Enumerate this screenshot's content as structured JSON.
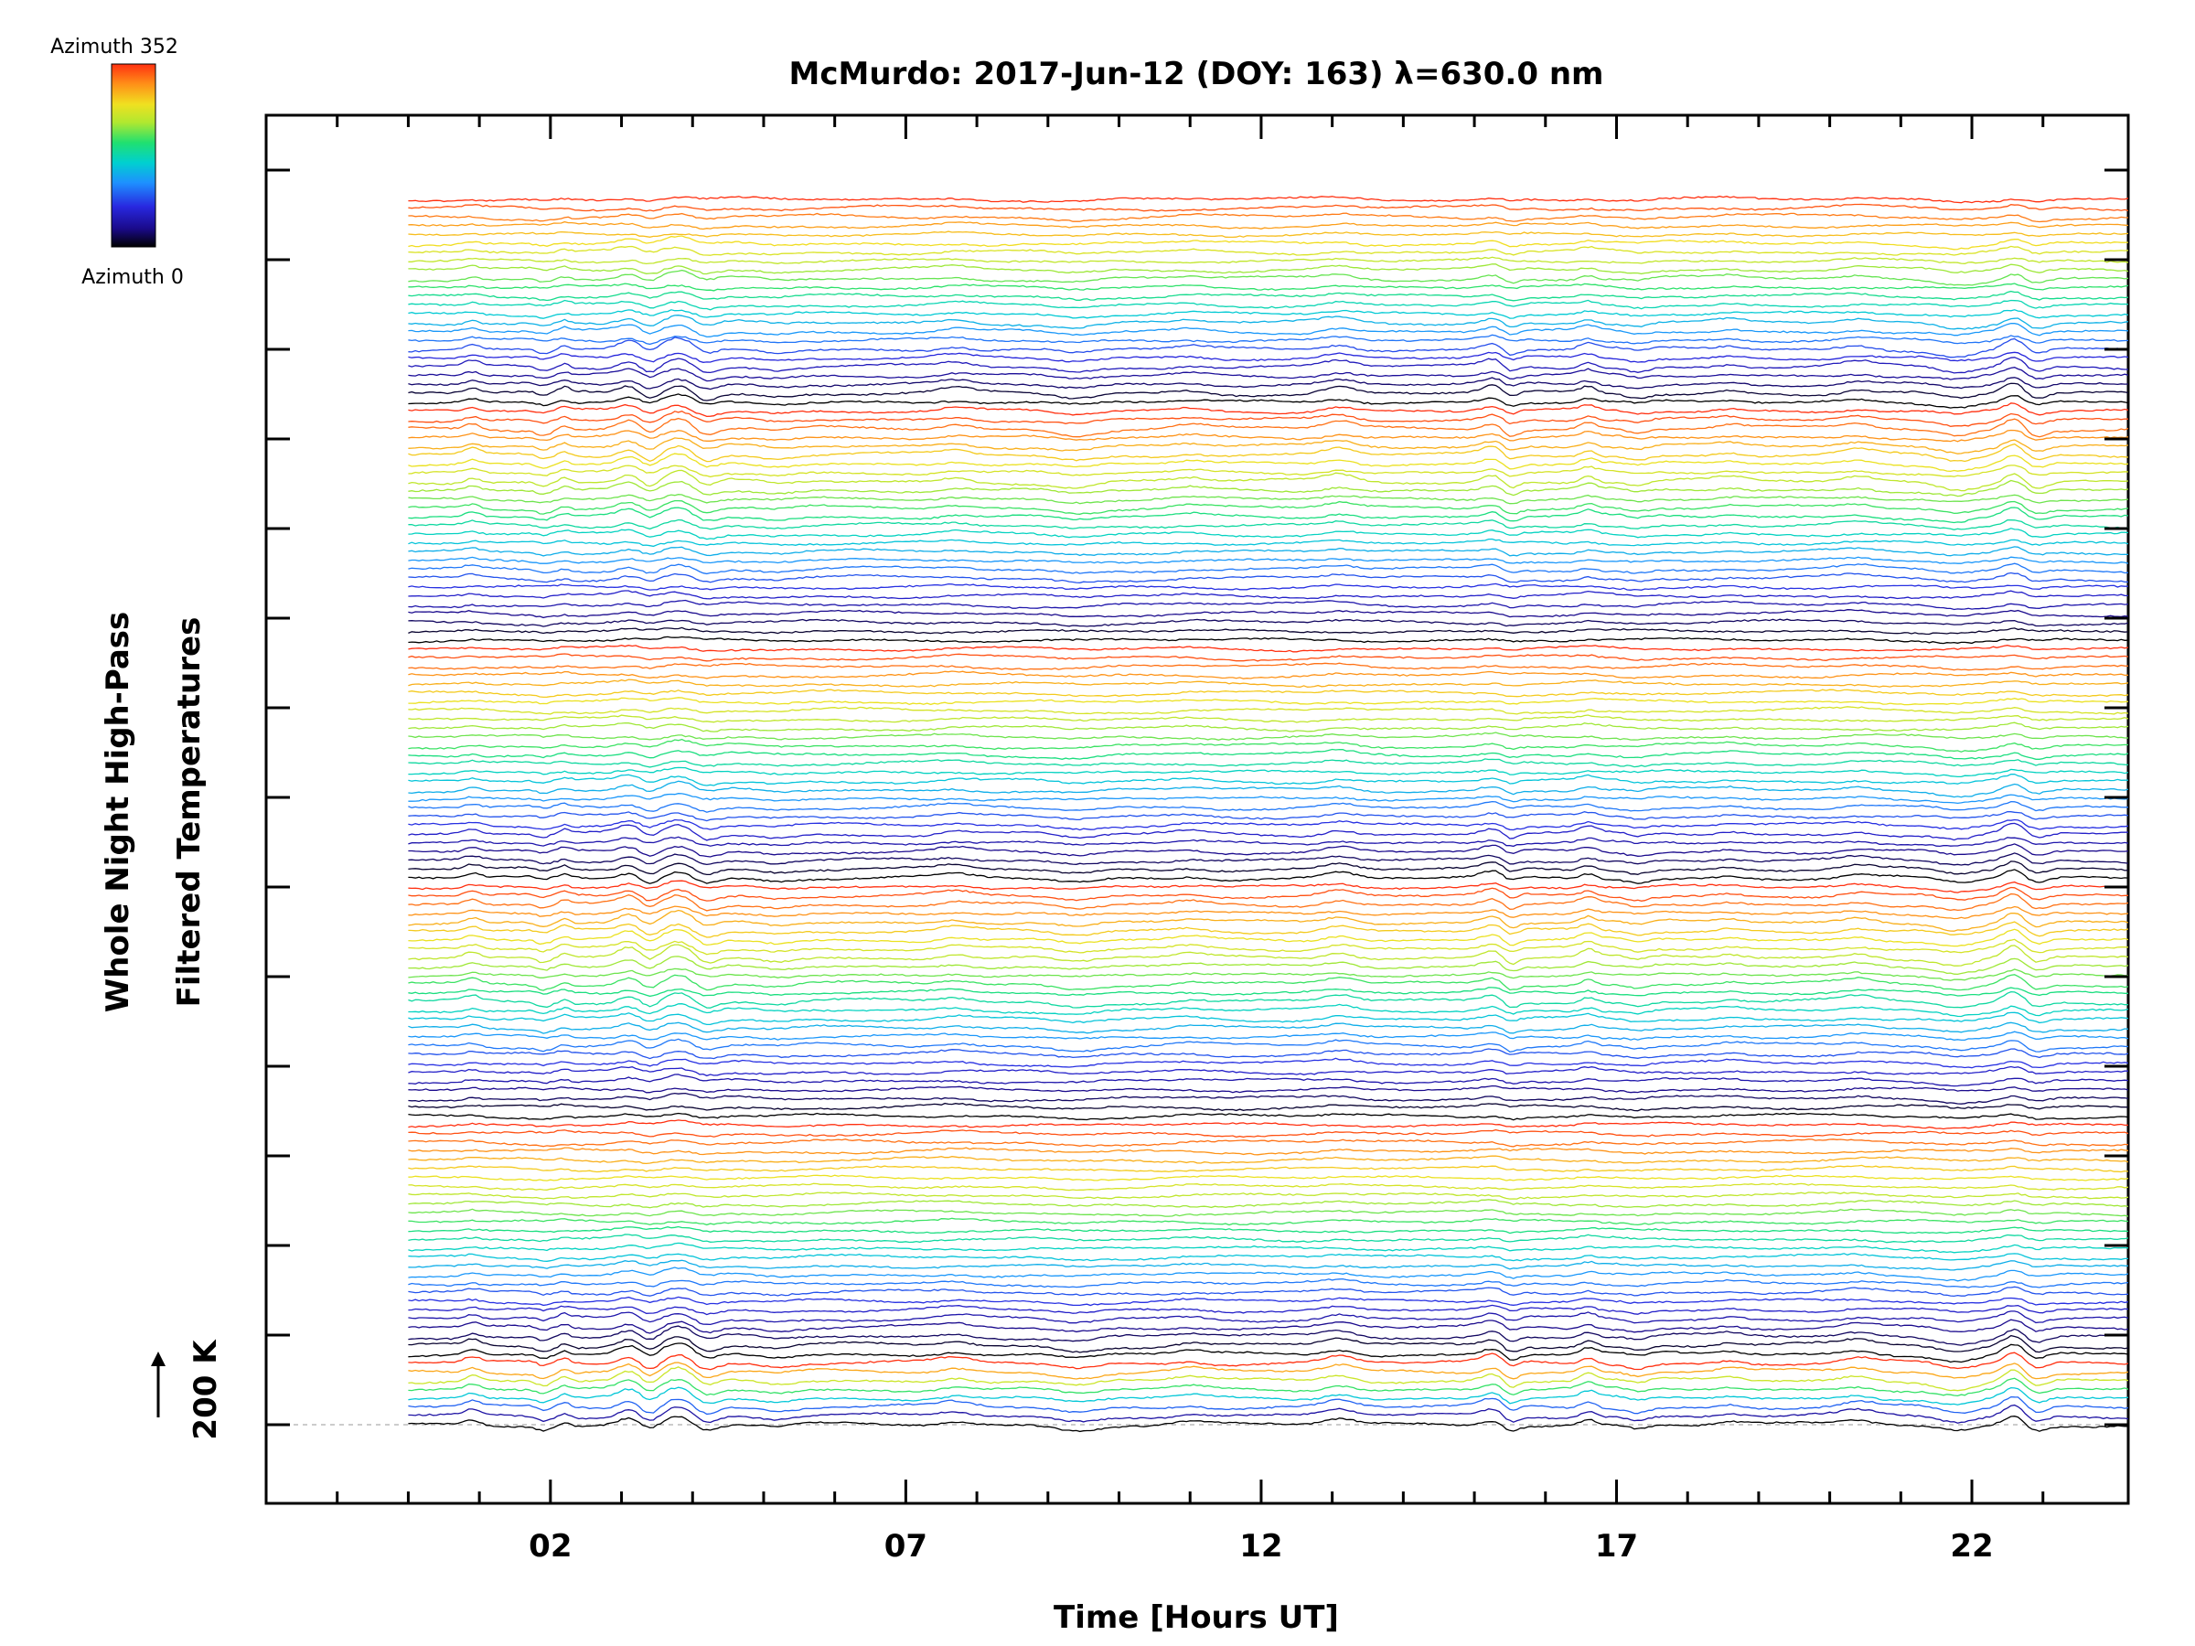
{
  "chart_data": {
    "type": "line",
    "title": "McMurdo: 2017-Jun-12 (DOY: 163) λ=630.0 nm",
    "xlabel": "Time [Hours UT]",
    "ylabel_line1": "Whole Night High-Pass",
    "ylabel_line2": "Filtered Temperatures",
    "scale_label": "200 K",
    "xlim": [
      -2,
      24.2
    ],
    "data_x_range": [
      0,
      24.2
    ],
    "x_tick_labels": [
      "02",
      "07",
      "12",
      "17",
      "22"
    ],
    "x_major_ticks": [
      2,
      7,
      12,
      17,
      22
    ],
    "x_minor_ticks": [
      -1,
      0,
      1,
      3,
      4,
      5,
      6,
      8,
      9,
      10,
      11,
      13,
      14,
      15,
      16,
      18,
      19,
      20,
      21,
      23
    ],
    "n_traces": 140,
    "trace_spacing_K": 20,
    "y_tick_count": 15,
    "colorbar": {
      "top_label": "Azimuth 352",
      "bottom_label": "Azimuth 0",
      "min": 0,
      "max": 352
    },
    "grid": false,
    "legend": "colorbar top-left",
    "colors": {
      "baseline": "#bbbbbb",
      "colormap": [
        "#000000",
        "#1a0a8a",
        "#2828e0",
        "#1e90ff",
        "#00d0d0",
        "#20e070",
        "#b0e830",
        "#f0e020",
        "#ff9018",
        "#ff3010"
      ]
    }
  }
}
